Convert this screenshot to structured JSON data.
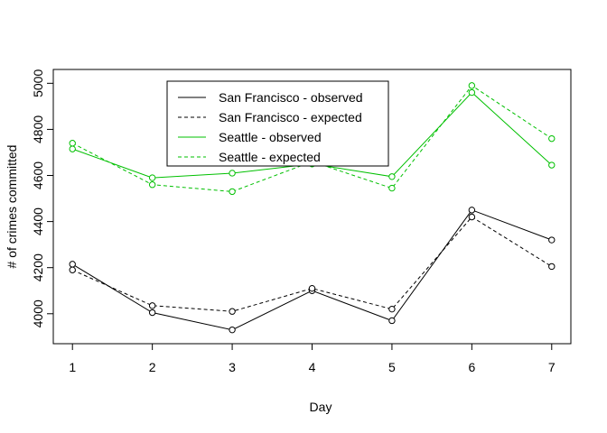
{
  "chart_data": {
    "type": "line",
    "title": "",
    "xlabel": "Day",
    "ylabel": "# of crimes committed",
    "x": [
      1,
      2,
      3,
      4,
      5,
      6,
      7
    ],
    "xticks": [
      "1",
      "2",
      "3",
      "4",
      "5",
      "6",
      "7"
    ],
    "yticks": [
      "4000",
      "4200",
      "4400",
      "4600",
      "4800",
      "5000"
    ],
    "xlim": [
      0.76,
      7.24
    ],
    "ylim": [
      3870,
      5060
    ],
    "grid": false,
    "legend_position": "top-center",
    "series": [
      {
        "name": "San Francisco - observed",
        "color": "#000000",
        "dashed": false,
        "values": [
          4215,
          4005,
          3930,
          4100,
          3970,
          4450,
          4320
        ]
      },
      {
        "name": "San Francisco - expected",
        "color": "#000000",
        "dashed": true,
        "values": [
          4190,
          4035,
          4010,
          4110,
          4020,
          4420,
          4205
        ]
      },
      {
        "name": "Seattle - observed",
        "color": "#00c000",
        "dashed": false,
        "values": [
          4715,
          4590,
          4610,
          4650,
          4595,
          4960,
          4645
        ]
      },
      {
        "name": "Seattle - expected",
        "color": "#00c000",
        "dashed": true,
        "values": [
          4740,
          4560,
          4530,
          4660,
          4545,
          4990,
          4760
        ]
      }
    ]
  }
}
